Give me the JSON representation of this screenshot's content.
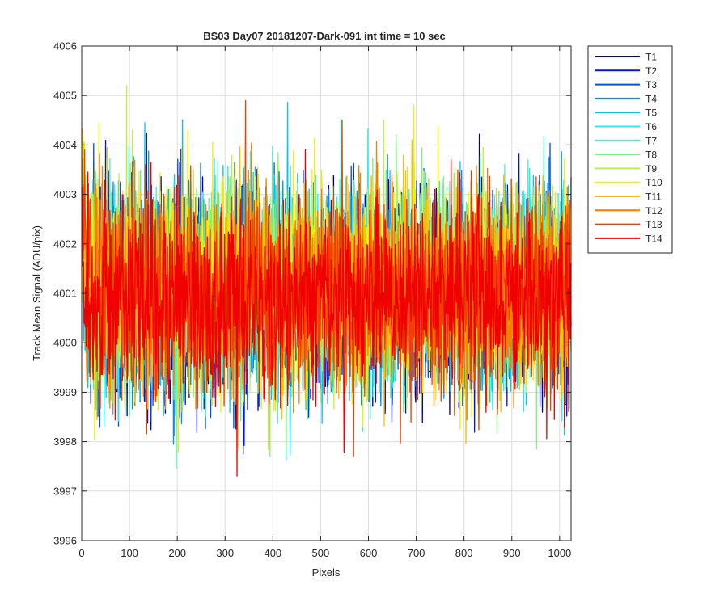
{
  "chart_data": {
    "type": "line",
    "title": "BS03 Day07 20181207-Dark-091 int time = 10 sec",
    "xlabel": "Pixels",
    "ylabel": "Track Mean Signal (ADU/pix)",
    "xlim": [
      0,
      1024
    ],
    "ylim": [
      3996,
      4006
    ],
    "xticks": [
      0,
      100,
      200,
      300,
      400,
      500,
      600,
      700,
      800,
      900,
      1000
    ],
    "yticks": [
      3996,
      3997,
      3998,
      3999,
      4000,
      4001,
      4002,
      4003,
      4004,
      4005,
      4006
    ],
    "xtick_labels": [
      "0",
      "100",
      "200",
      "300",
      "400",
      "500",
      "600",
      "700",
      "800",
      "900",
      "1000"
    ],
    "ytick_labels": [
      "3996",
      "3997",
      "3998",
      "3999",
      "4000",
      "4001",
      "4002",
      "4003",
      "4004",
      "4005",
      "4006"
    ],
    "grid": true,
    "legend_position": "outside-right",
    "num_pixels": 1024,
    "noise_sigma_adu": 1.0,
    "series": [
      {
        "name": "T1",
        "color": "#0000AA",
        "mean": 4000.95
      },
      {
        "name": "T2",
        "color": "#0018D0",
        "mean": 4001.0
      },
      {
        "name": "T3",
        "color": "#0050EE",
        "mean": 4001.0
      },
      {
        "name": "T4",
        "color": "#0090F5",
        "mean": 4001.05
      },
      {
        "name": "T5",
        "color": "#00C8F0",
        "mean": 4001.05
      },
      {
        "name": "T6",
        "color": "#20F0F0",
        "mean": 4001.05
      },
      {
        "name": "T7",
        "color": "#50F0C8",
        "mean": 4001.05
      },
      {
        "name": "T8",
        "color": "#80F080",
        "mean": 4001.1
      },
      {
        "name": "T9",
        "color": "#C0F040",
        "mean": 4001.1
      },
      {
        "name": "T10",
        "color": "#F0F000",
        "mean": 4001.15
      },
      {
        "name": "T11",
        "color": "#F5C000",
        "mean": 4001.05
      },
      {
        "name": "T12",
        "color": "#F58000",
        "mean": 4001.05
      },
      {
        "name": "T13",
        "color": "#F04000",
        "mean": 4001.0
      },
      {
        "name": "T14",
        "color": "#F00000",
        "mean": 4000.9
      }
    ]
  }
}
